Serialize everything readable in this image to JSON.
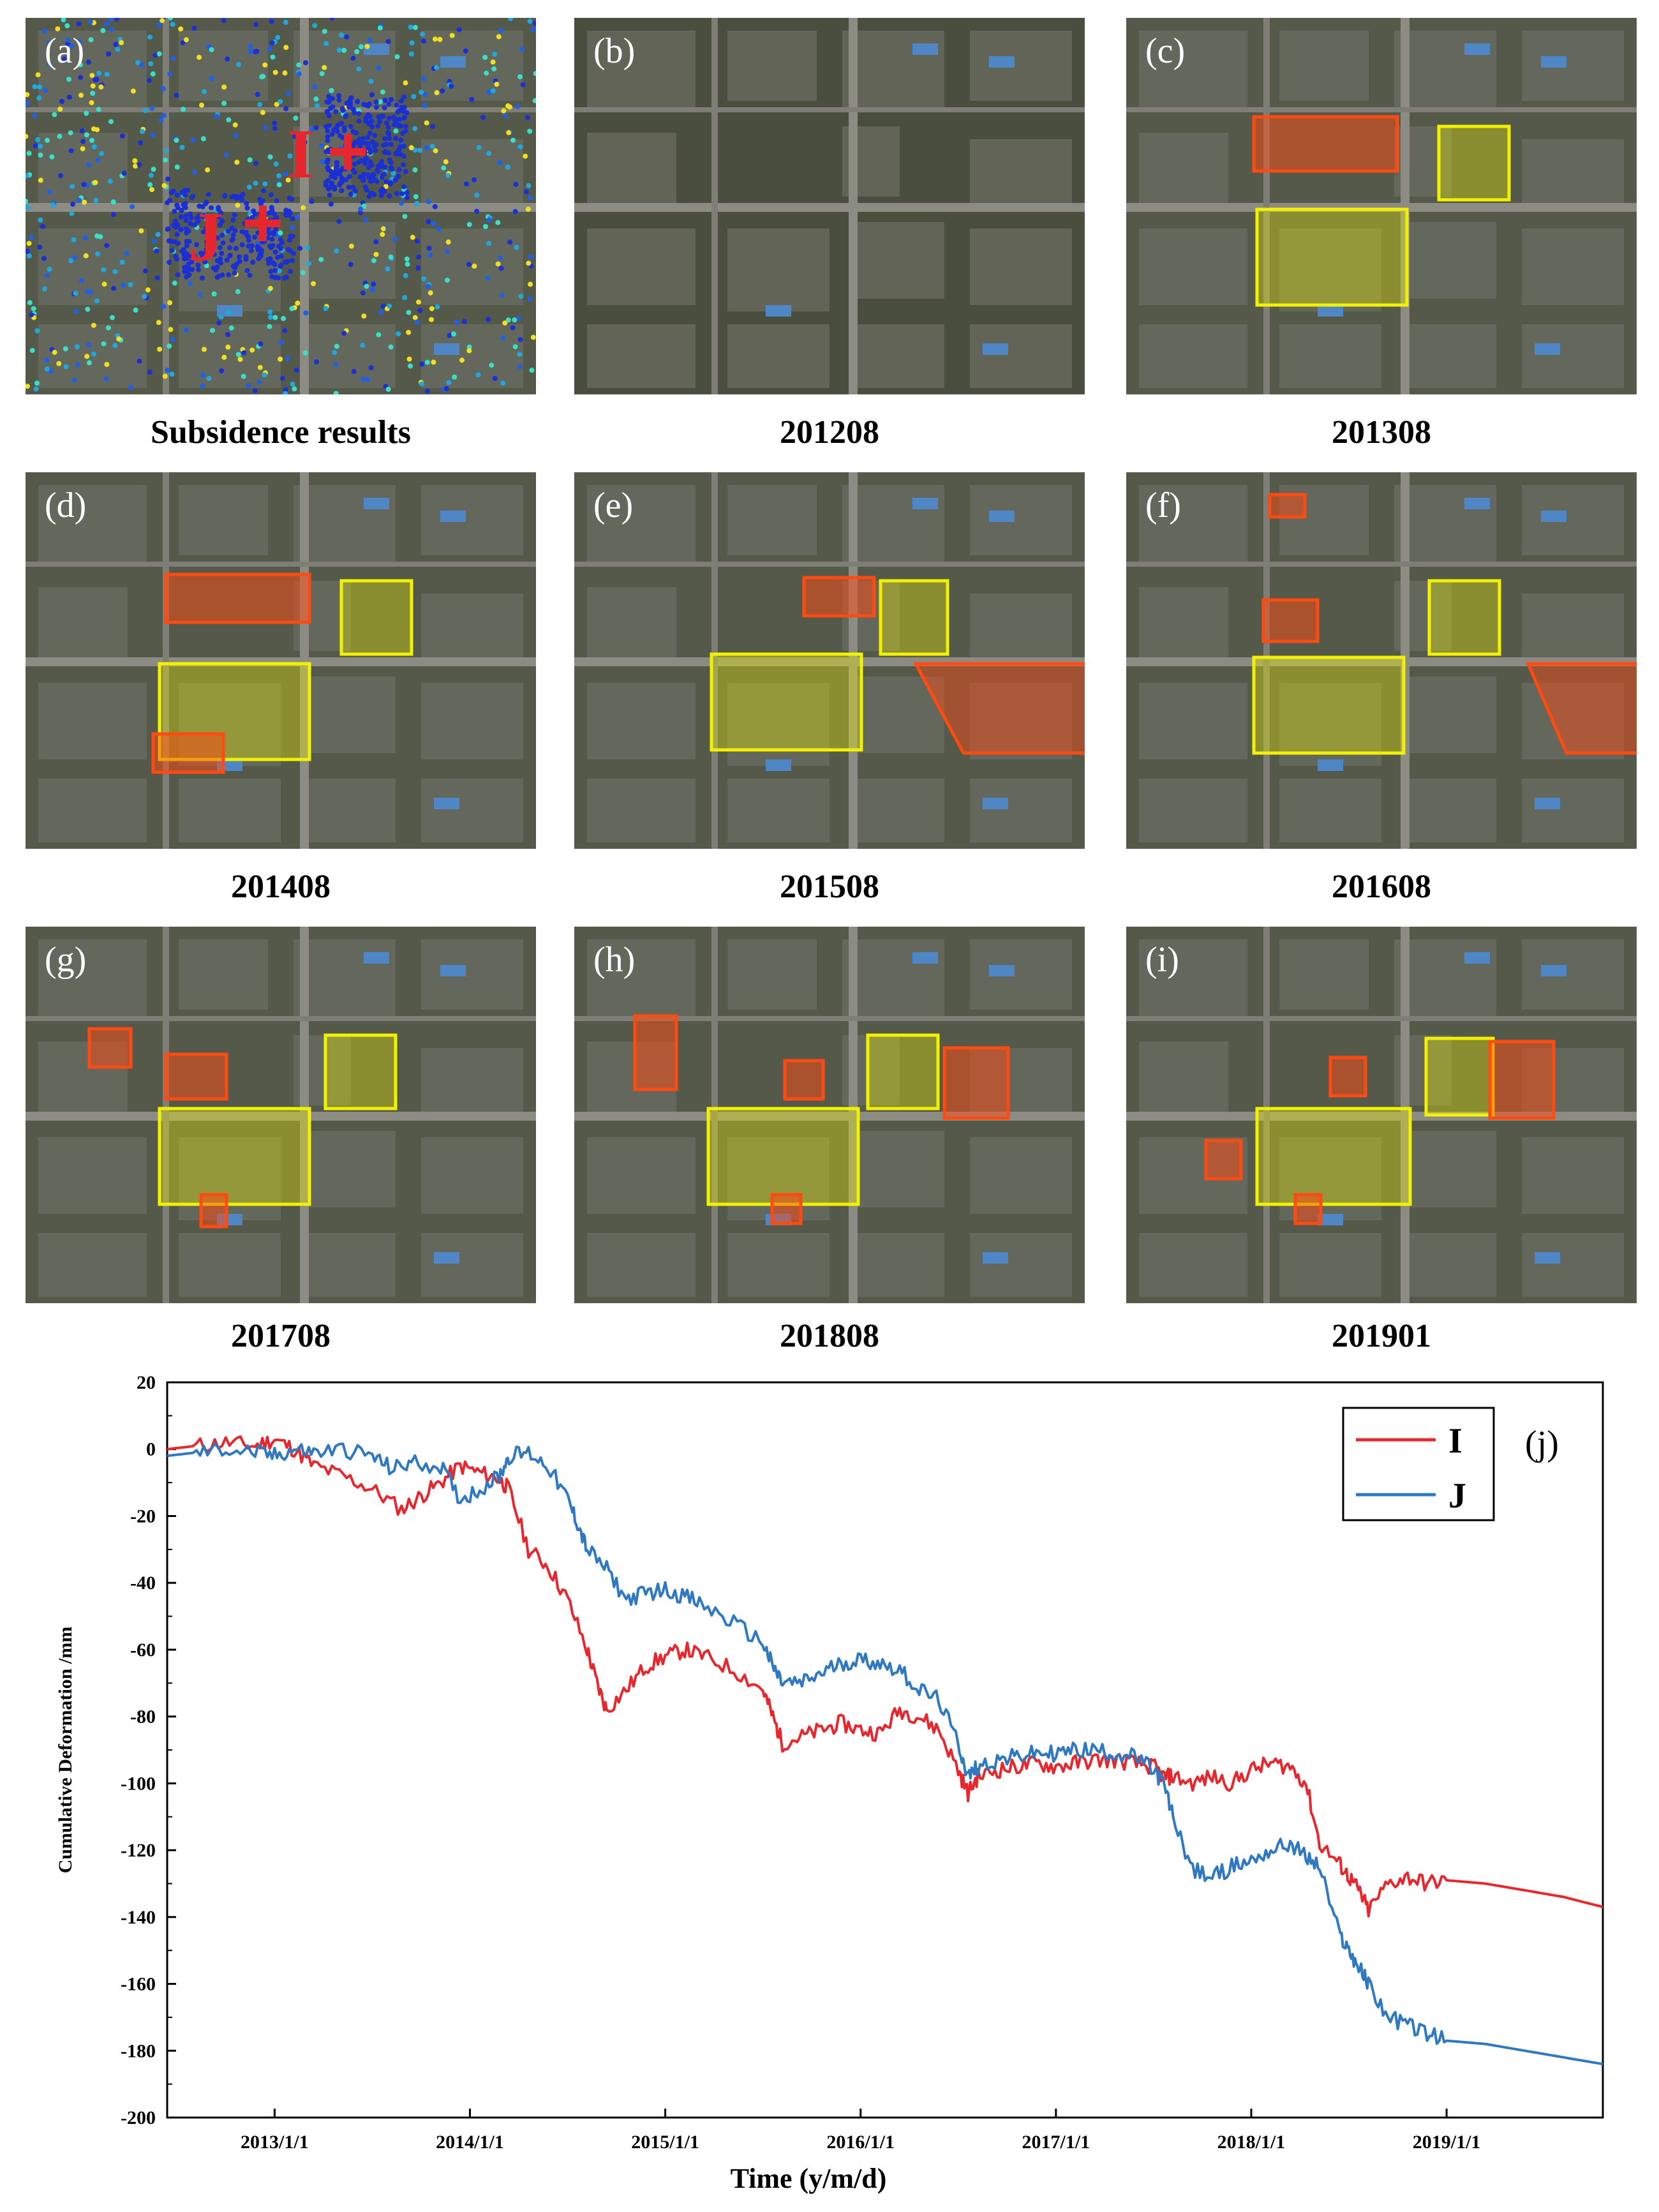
{
  "panels": [
    {
      "letter": "(a)",
      "caption": "Subsidence results"
    },
    {
      "letter": "(b)",
      "caption": "201208"
    },
    {
      "letter": "(c)",
      "caption": "201308"
    },
    {
      "letter": "(d)",
      "caption": "201408"
    },
    {
      "letter": "(e)",
      "caption": "201508"
    },
    {
      "letter": "(f)",
      "caption": "201608"
    },
    {
      "letter": "(g)",
      "caption": "201708"
    },
    {
      "letter": "(h)",
      "caption": "201808"
    },
    {
      "letter": "(i)",
      "caption": "201901"
    }
  ],
  "markers": {
    "I": "I",
    "J": "J"
  },
  "colors": {
    "red_series": "#e8262d",
    "blue_series": "#2f79c2",
    "highlight_yellow": "#f2f200",
    "highlight_red": "#ff4a12"
  },
  "chart_data": {
    "type": "line",
    "panel_label": "(j)",
    "xlabel": "Time (y/m/d)",
    "ylabel": "Cumulative Deformation /mm",
    "ylim": [
      -200,
      20
    ],
    "xlim": [
      2012.45,
      2019.8
    ],
    "yticks": [
      20,
      0,
      -20,
      -40,
      -60,
      -80,
      -100,
      -120,
      -140,
      -160,
      -180,
      -200
    ],
    "xticks": [
      {
        "value": 2013.0,
        "label": "2013/1/1"
      },
      {
        "value": 2014.0,
        "label": "2014/1/1"
      },
      {
        "value": 2015.0,
        "label": "2015/1/1"
      },
      {
        "value": 2016.0,
        "label": "2016/1/1"
      },
      {
        "value": 2017.0,
        "label": "2017/1/1"
      },
      {
        "value": 2018.0,
        "label": "2018/1/1"
      },
      {
        "value": 2019.0,
        "label": "2019/1/1"
      }
    ],
    "legend_position": "top-right",
    "series": [
      {
        "name": "I",
        "color": "#e8262d",
        "x": [
          2012.45,
          2012.6,
          2012.75,
          2012.9,
          2013.0,
          2013.1,
          2013.2,
          2013.35,
          2013.5,
          2013.65,
          2013.75,
          2013.85,
          2013.95,
          2014.05,
          2014.15,
          2014.2,
          2014.3,
          2014.4,
          2014.5,
          2014.6,
          2014.65,
          2014.7,
          2014.8,
          2014.9,
          2015.0,
          2015.1,
          2015.2,
          2015.35,
          2015.5,
          2015.55,
          2015.6,
          2015.7,
          2015.8,
          2015.9,
          2016.0,
          2016.1,
          2016.2,
          2016.3,
          2016.4,
          2016.5,
          2016.55,
          2016.6,
          2016.7,
          2016.8,
          2016.9,
          2017.0,
          2017.1,
          2017.2,
          2017.3,
          2017.4,
          2017.5,
          2017.55,
          2017.6,
          2017.7,
          2017.8,
          2017.9,
          2018.0,
          2018.1,
          2018.2,
          2018.28,
          2018.35,
          2018.45,
          2018.5,
          2018.55,
          2018.6,
          2018.7,
          2018.8,
          2018.9,
          2019.0,
          2019.2,
          2019.4,
          2019.6,
          2019.8
        ],
        "y": [
          0,
          1,
          2,
          1,
          3,
          0,
          -5,
          -8,
          -12,
          -18,
          -14,
          -10,
          -5,
          -7,
          -9,
          -12,
          -30,
          -35,
          -45,
          -60,
          -70,
          -78,
          -72,
          -65,
          -62,
          -60,
          -62,
          -66,
          -72,
          -80,
          -88,
          -86,
          -84,
          -82,
          -84,
          -85,
          -78,
          -80,
          -84,
          -96,
          -103,
          -98,
          -96,
          -95,
          -94,
          -95,
          -94,
          -93,
          -93,
          -94,
          -95,
          -98,
          -98,
          -100,
          -98,
          -100,
          -96,
          -94,
          -95,
          -100,
          -118,
          -124,
          -128,
          -132,
          -138,
          -130,
          -128,
          -130,
          -129,
          -130,
          -132,
          -134,
          -137
        ]
      },
      {
        "name": "J",
        "color": "#2f79c2",
        "x": [
          2012.45,
          2012.6,
          2012.75,
          2012.9,
          2013.0,
          2013.1,
          2013.2,
          2013.35,
          2013.5,
          2013.6,
          2013.7,
          2013.85,
          2013.95,
          2014.05,
          2014.15,
          2014.2,
          2014.3,
          2014.4,
          2014.5,
          2014.55,
          2014.6,
          2014.7,
          2014.8,
          2014.9,
          2015.0,
          2015.1,
          2015.2,
          2015.35,
          2015.5,
          2015.55,
          2015.6,
          2015.7,
          2015.8,
          2015.9,
          2016.0,
          2016.1,
          2016.2,
          2016.3,
          2016.4,
          2016.5,
          2016.55,
          2016.6,
          2016.7,
          2016.8,
          2016.9,
          2017.0,
          2017.1,
          2017.2,
          2017.3,
          2017.4,
          2017.5,
          2017.55,
          2017.6,
          2017.7,
          2017.8,
          2017.9,
          2018.0,
          2018.1,
          2018.2,
          2018.28,
          2018.35,
          2018.45,
          2018.5,
          2018.55,
          2018.6,
          2018.7,
          2018.8,
          2018.9,
          2019.0,
          2019.2,
          2019.4,
          2019.6,
          2019.8
        ],
        "y": [
          -2,
          -1,
          0,
          -1,
          -2,
          0,
          -1,
          0,
          -2,
          -6,
          -4,
          -5,
          -15,
          -12,
          -8,
          -2,
          -1,
          -5,
          -15,
          -22,
          -30,
          -36,
          -45,
          -43,
          -42,
          -44,
          -47,
          -52,
          -58,
          -65,
          -70,
          -70,
          -67,
          -64,
          -63,
          -64,
          -66,
          -72,
          -75,
          -88,
          -98,
          -95,
          -93,
          -92,
          -91,
          -91,
          -90,
          -90,
          -91,
          -92,
          -96,
          -100,
          -110,
          -126,
          -128,
          -125,
          -123,
          -120,
          -118,
          -122,
          -125,
          -145,
          -150,
          -155,
          -160,
          -170,
          -172,
          -175,
          -177,
          -178,
          -180,
          -182,
          -184
        ]
      }
    ]
  }
}
